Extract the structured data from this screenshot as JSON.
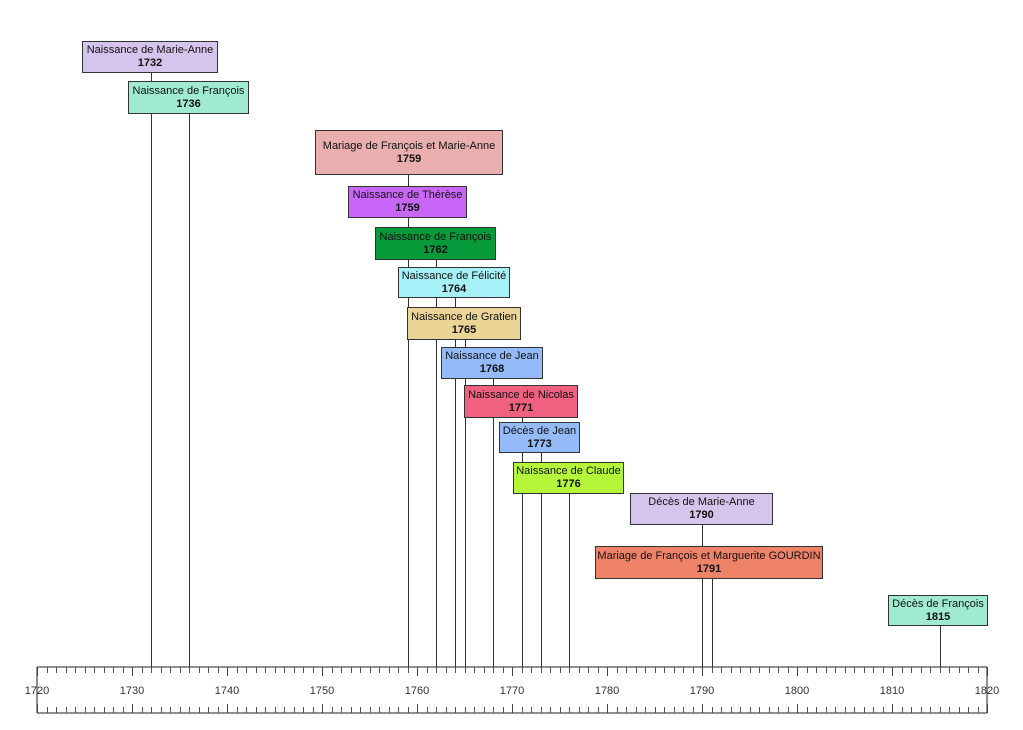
{
  "timeline": {
    "axis": {
      "start_year": 1720,
      "end_year": 1820,
      "major_step": 10,
      "minor_step": 1,
      "tick_labels": [
        "1720",
        "1730",
        "1740",
        "1750",
        "1760",
        "1770",
        "1780",
        "1790",
        "1800",
        "1810",
        "1820"
      ]
    },
    "events": [
      {
        "label": "Naissance de Marie-Anne",
        "year": "1732",
        "color": "#d5c4ec"
      },
      {
        "label": "Naissance de François",
        "year": "1736",
        "color": "#a0ead0"
      },
      {
        "label": "Mariage de François et Marie-Anne",
        "year": "1759",
        "color": "#e9afae"
      },
      {
        "label": "Naissance de Thérèse",
        "year": "1759",
        "color": "#c867f7"
      },
      {
        "label": "Naissance de François",
        "year": "1762",
        "color": "#069a3b"
      },
      {
        "label": "Naissance de Félicité",
        "year": "1764",
        "color": "#a6f0f8"
      },
      {
        "label": "Naissance de Gratien",
        "year": "1765",
        "color": "#ead597"
      },
      {
        "label": "Naissance de Jean",
        "year": "1768",
        "color": "#94bbf7"
      },
      {
        "label": "Naissance de Nicolas",
        "year": "1771",
        "color": "#f0607f"
      },
      {
        "label": "Décès de Jean",
        "year": "1773",
        "color": "#94bbf7"
      },
      {
        "label": "Naissance de Claude",
        "year": "1776",
        "color": "#b6f63a"
      },
      {
        "label": "Décès de Marie-Anne",
        "year": "1790",
        "color": "#d5c4ec"
      },
      {
        "label": "Mariage de François et Marguerite GOURDIN",
        "year": "1791",
        "color": "#ef836a"
      },
      {
        "label": "Décès de François",
        "year": "1815",
        "color": "#a0ead0"
      }
    ]
  }
}
